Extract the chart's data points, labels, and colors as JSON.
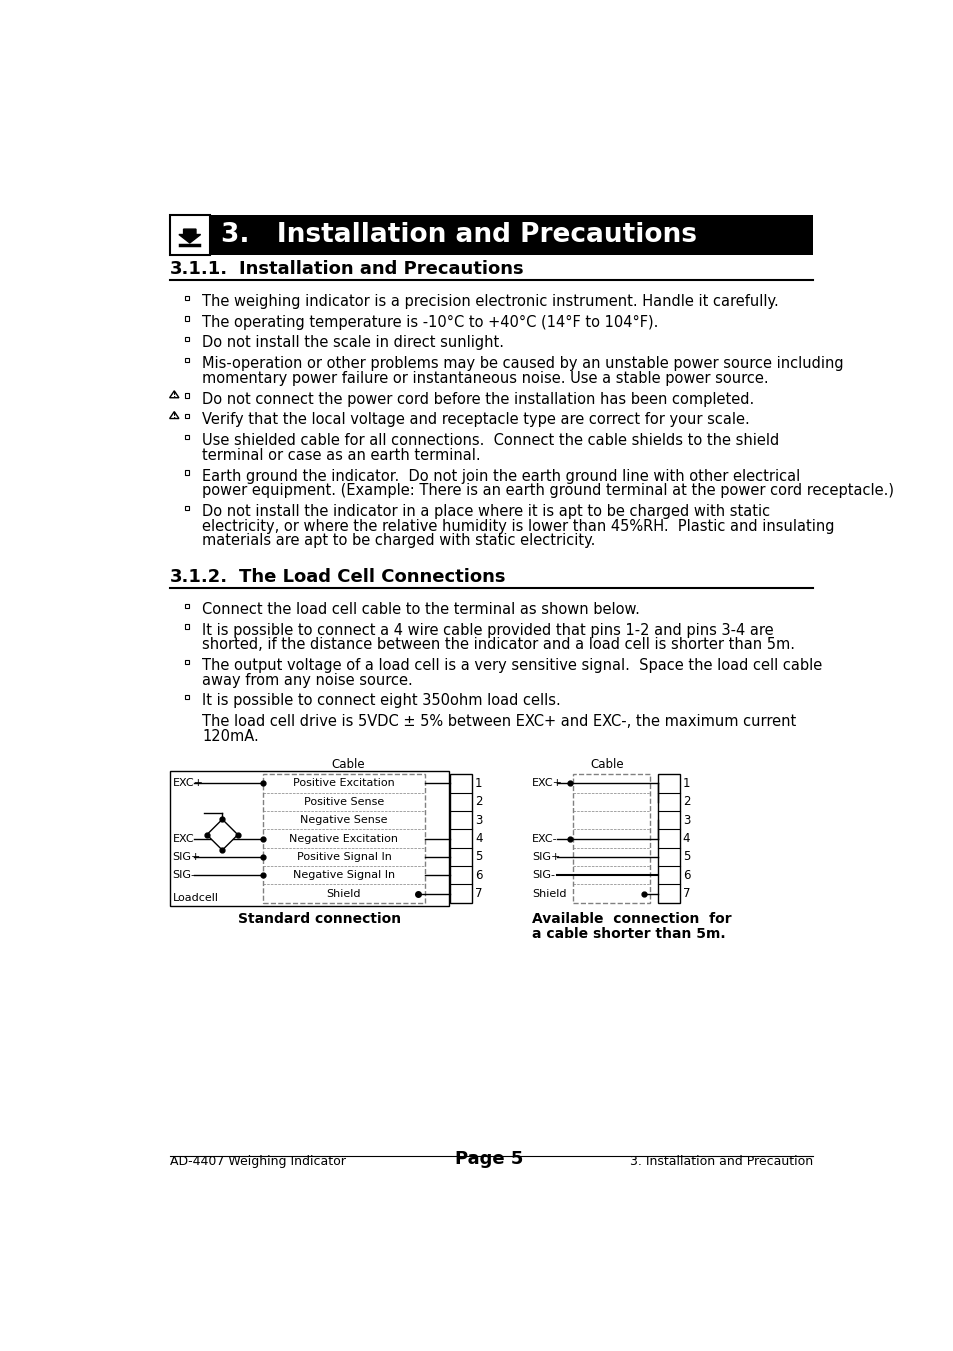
{
  "page_bg": "#ffffff",
  "header_text": "3.   Installation and Precautions",
  "section1_title": "3.1.1.",
  "section1_subtitle": "Installation and Precautions",
  "section2_title": "3.1.2.",
  "section2_subtitle": "The Load Cell Connections",
  "s1_items": [
    {
      "text": "The weighing indicator is a precision electronic instrument. Handle it carefully.",
      "warn": false
    },
    {
      "text": "The operating temperature is -10°C to +40°C (14°F to 104°F).",
      "warn": false
    },
    {
      "text": "Do not install the scale in direct sunlight.",
      "warn": false
    },
    {
      "text": "Mis-operation or other problems may be caused by an unstable power source including\nmomentary power failure or instantaneous noise. Use a stable power source.",
      "warn": false
    },
    {
      "text": "Do not connect the power cord before the installation has been completed.",
      "warn": true
    },
    {
      "text": "Verify that the local voltage and receptacle type are correct for your scale.",
      "warn": true
    },
    {
      "text": "Use shielded cable for all connections.  Connect the cable shields to the shield\nterminal or case as an earth terminal.",
      "warn": false
    },
    {
      "text": "Earth ground the indicator.  Do not join the earth ground line with other electrical\npower equipment. (Example: There is an earth ground terminal at the power cord receptacle.)",
      "warn": false
    },
    {
      "text": "Do not install the indicator in a place where it is apt to be charged with static\nelectricity, or where the relative humidity is lower than 45%RH.  Plastic and insulating\nmaterials are apt to be charged with static electricity.",
      "warn": false
    }
  ],
  "s2_items": [
    {
      "text": "Connect the load cell cable to the terminal as shown below.",
      "bullet": true
    },
    {
      "text": "It is possible to connect a 4 wire cable provided that pins 1-2 and pins 3-4 are\nshorted, if the distance between the indicator and a load cell is shorter than 5m.",
      "bullet": true
    },
    {
      "text": "The output voltage of a load cell is a very sensitive signal.  Space the load cell cable\naway from any noise source.",
      "bullet": true
    },
    {
      "text": "It is possible to connect eight 350ohm load cells.",
      "bullet": true
    },
    {
      "text": "The load cell drive is 5VDC ± 5% between EXC+ and EXC-, the maximum current\n120mA.",
      "bullet": false
    }
  ],
  "conn_labels": [
    "Positive Excitation",
    "Positive Sense",
    "Negative Sense",
    "Negative Excitation",
    "Positive Signal In",
    "Negative Signal In",
    "Shield"
  ],
  "footer_left": "AD-4407 Weighing Indicator",
  "footer_center": "Page 5",
  "footer_right": "3. Installation and Precaution"
}
